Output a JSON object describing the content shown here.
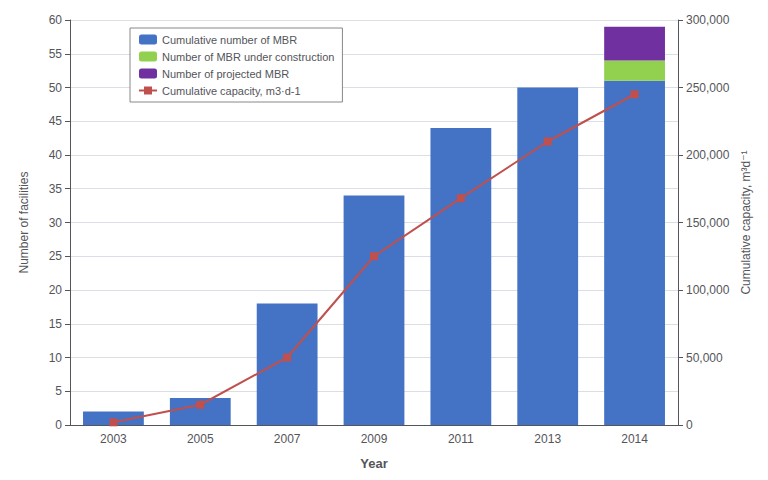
{
  "chart_data": {
    "type": "bar",
    "xlabel": "Year",
    "ylabel": "Number of facilities",
    "y2label": "Cumulative capacity, m³d⁻¹",
    "categories": [
      "2003",
      "2005",
      "2007",
      "2009",
      "2011",
      "2013",
      "2014"
    ],
    "series": [
      {
        "name": "Cumulative number of MBR",
        "type": "bar",
        "color": "#4472C4",
        "values": [
          2,
          4,
          18,
          34,
          44,
          50,
          51
        ]
      },
      {
        "name": "Number of MBR under construction",
        "type": "bar",
        "color": "#92D050",
        "values": [
          0,
          0,
          0,
          0,
          0,
          0,
          3
        ]
      },
      {
        "name": "Number of projected MBR",
        "type": "bar",
        "color": "#7030A0",
        "values": [
          0,
          0,
          0,
          0,
          0,
          0,
          5
        ]
      },
      {
        "name": "Cumulative capacity, m3·d-1",
        "type": "line",
        "axis": "y2",
        "marker": "square",
        "color": "#C0504D",
        "values": [
          2000,
          15000,
          50000,
          125000,
          168000,
          210000,
          245000
        ]
      }
    ],
    "stacked": true,
    "ylim": [
      0,
      60
    ],
    "yticks": [
      0,
      5,
      10,
      15,
      20,
      25,
      30,
      35,
      40,
      45,
      50,
      55,
      60
    ],
    "y2lim": [
      0,
      300000
    ],
    "y2ticks": [
      0,
      {
        "value": 50000,
        "label": "50,000"
      },
      {
        "value": 100000,
        "label": "100,000"
      },
      {
        "value": 150000,
        "label": "150,000"
      },
      {
        "value": 200000,
        "label": "200,000"
      },
      {
        "value": 250000,
        "label": "250,000"
      },
      {
        "value": 300000,
        "label": "300,000"
      }
    ],
    "grid": true,
    "legend": "upper left"
  }
}
